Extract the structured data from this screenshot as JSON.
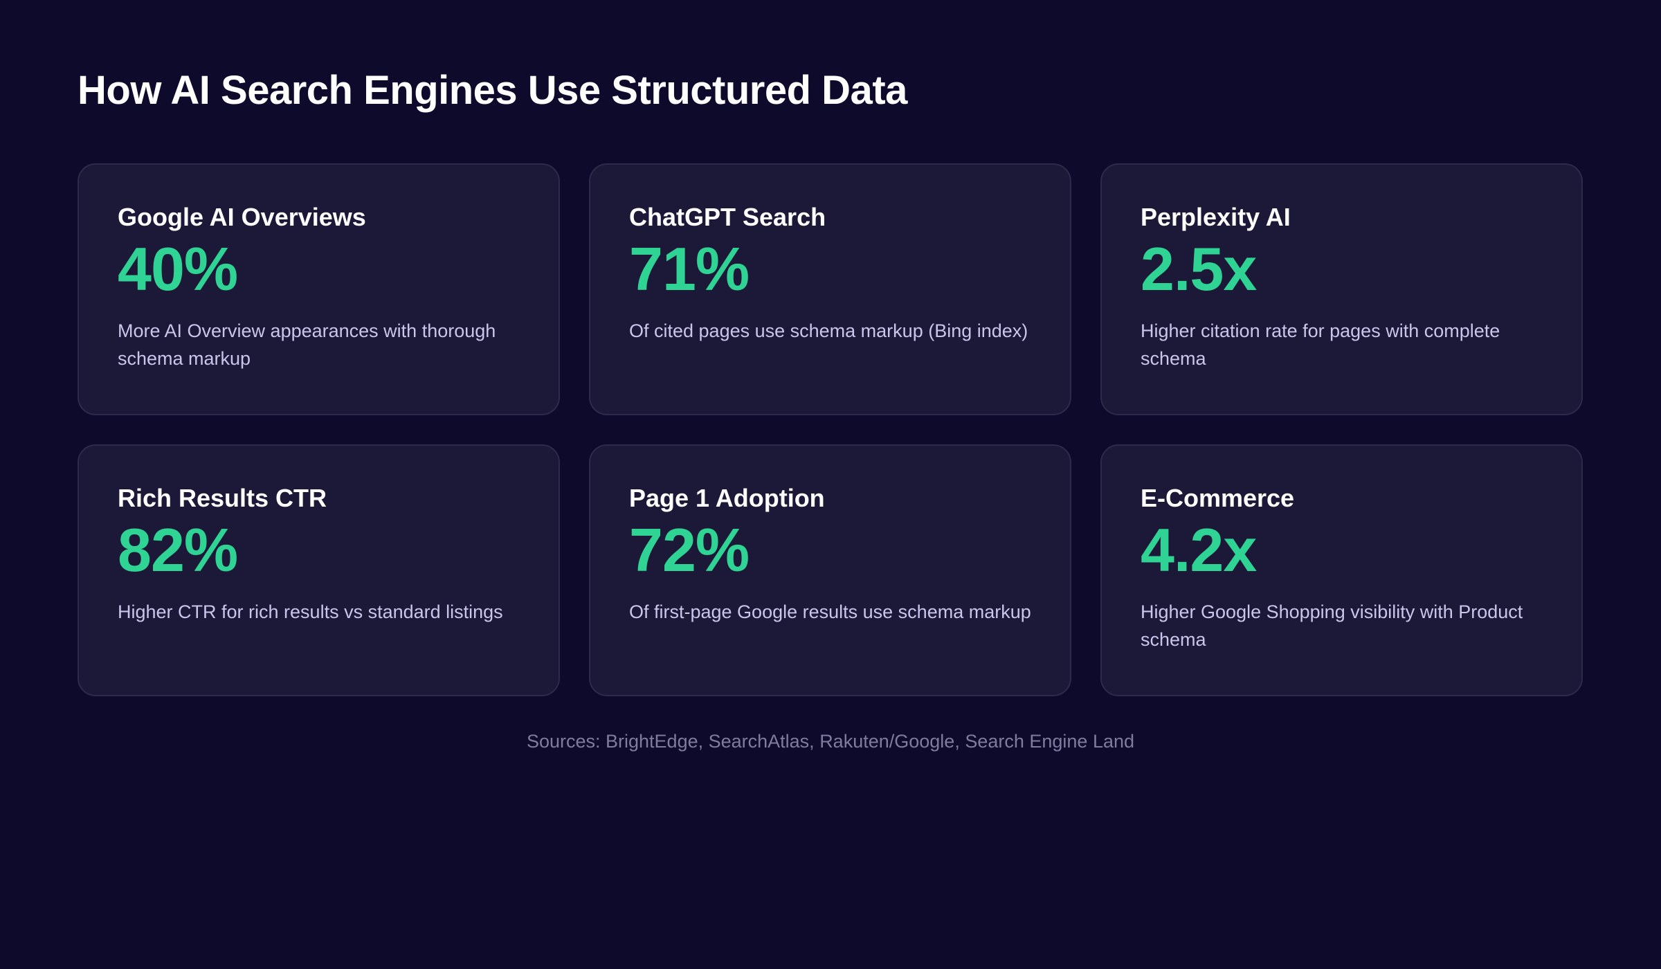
{
  "page": {
    "title": "How AI Search Engines Use Structured Data",
    "sources": "Sources: BrightEdge, SearchAtlas, Rakuten/Google, Search Engine Land"
  },
  "colors": {
    "background": "#0d0a2b",
    "card_background": "#1c1838",
    "card_border": "#2e2a4d",
    "stat_accent": "#2fd494",
    "title_text": "#ffffff",
    "description_text": "#c9c6ec",
    "sources_text": "#807c9f"
  },
  "cards": [
    {
      "title": "Google AI Overviews",
      "stat": "40%",
      "description": "More AI Overview appearances with thorough schema markup"
    },
    {
      "title": "ChatGPT Search",
      "stat": "71%",
      "description": "Of cited pages use schema markup (Bing index)"
    },
    {
      "title": "Perplexity AI",
      "stat": "2.5x",
      "description": "Higher citation rate for pages with complete schema"
    },
    {
      "title": "Rich Results CTR",
      "stat": "82%",
      "description": "Higher CTR for rich results vs standard listings"
    },
    {
      "title": "Page 1 Adoption",
      "stat": "72%",
      "description": "Of first-page Google results use schema markup"
    },
    {
      "title": "E-Commerce",
      "stat": "4.2x",
      "description": "Higher Google Shopping visibility with Product schema"
    }
  ]
}
